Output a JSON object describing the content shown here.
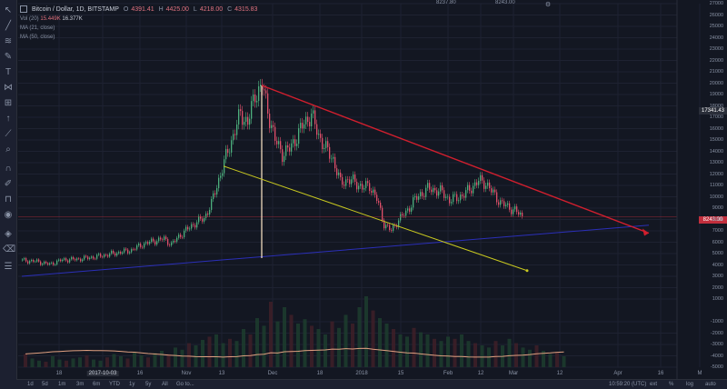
{
  "header": {
    "symbol": "Bitcoin / Dollar, 1D, BITSTAMP",
    "o_label": "O",
    "o_value": "4391.41",
    "h_label": "H",
    "h_value": "4425.00",
    "l_label": "L",
    "l_value": "4218.00",
    "c_label": "C",
    "c_value": "4315.83"
  },
  "sub_legends": {
    "vol": "Vol (20)",
    "vol_value_red": "15.449K",
    "vol_value": "16.377K",
    "ma1": "MA (21, close)",
    "ma2": "MA (50, close)"
  },
  "top_boxes": [
    "8237.80",
    "8243.00"
  ],
  "price_tags": {
    "crosshair": "17341.43",
    "last": "8243.00"
  },
  "bottom_bar": {
    "ranges": [
      "1d",
      "5d",
      "1m",
      "3m",
      "6m",
      "YTD",
      "1y",
      "5y",
      "All",
      "Go to..."
    ],
    "time": "10:59:20 (UTC)",
    "ext": "ext",
    "pct": "%",
    "log": "log",
    "auto": "auto"
  },
  "chart_data": {
    "type": "line",
    "symbol": "BTC/USD",
    "interval": "1D",
    "y_axis_ticks": [
      27000,
      26000,
      25000,
      24000,
      23000,
      22000,
      21000,
      20000,
      19000,
      18000,
      17000,
      16000,
      15000,
      14000,
      13000,
      12000,
      11000,
      10000,
      9000,
      8000,
      7000,
      6000,
      5000,
      4000,
      3000,
      2000,
      1000,
      -1000,
      -2000,
      -3000,
      -4000,
      -5000
    ],
    "x_axis_labels": [
      "18",
      "2017-10-03",
      "16",
      "Nov",
      "13",
      "Dec",
      "18",
      "2018",
      "15",
      "Feb",
      "12",
      "Mar",
      "12",
      "Apr",
      "16",
      "M"
    ],
    "x_axis_highlight": "2017-10-03",
    "ylim": [
      -5000,
      27000
    ],
    "price_path": [
      [
        0,
        4400
      ],
      [
        8,
        4300
      ],
      [
        15,
        4050
      ],
      [
        22,
        4450
      ],
      [
        30,
        4500
      ],
      [
        40,
        4700
      ],
      [
        50,
        5000
      ],
      [
        60,
        5300
      ],
      [
        66,
        5800
      ],
      [
        72,
        6100
      ],
      [
        78,
        6300
      ],
      [
        82,
        5800
      ],
      [
        86,
        6500
      ],
      [
        92,
        7300
      ],
      [
        96,
        7800
      ],
      [
        100,
        8100
      ],
      [
        104,
        9400
      ],
      [
        108,
        11500
      ],
      [
        112,
        13500
      ],
      [
        116,
        15400
      ],
      [
        120,
        17300
      ],
      [
        124,
        16500
      ],
      [
        128,
        19000
      ],
      [
        132,
        19800
      ],
      [
        135,
        17600
      ],
      [
        139,
        15000
      ],
      [
        143,
        13800
      ],
      [
        147,
        14200
      ],
      [
        151,
        15300
      ],
      [
        155,
        16500
      ],
      [
        159,
        17200
      ],
      [
        163,
        15400
      ],
      [
        167,
        14200
      ],
      [
        171,
        13300
      ],
      [
        175,
        11200
      ],
      [
        179,
        11500
      ],
      [
        183,
        11300
      ],
      [
        187,
        10800
      ],
      [
        191,
        11000
      ],
      [
        195,
        9800
      ],
      [
        199,
        7600
      ],
      [
        203,
        7000
      ],
      [
        207,
        8000
      ],
      [
        211,
        8600
      ],
      [
        215,
        9600
      ],
      [
        219,
        10200
      ],
      [
        223,
        10700
      ],
      [
        227,
        10600
      ],
      [
        231,
        10400
      ],
      [
        235,
        9700
      ],
      [
        239,
        9900
      ],
      [
        243,
        10200
      ],
      [
        247,
        10800
      ],
      [
        251,
        11400
      ],
      [
        255,
        11200
      ],
      [
        259,
        10300
      ],
      [
        263,
        9500
      ],
      [
        267,
        9100
      ],
      [
        271,
        8800
      ],
      [
        275,
        8243
      ]
    ],
    "annotations": {
      "red_trend": {
        "x": [
          132,
          345
        ],
        "y": [
          19800,
          6800
        ]
      },
      "yellow_trend": {
        "x": [
          111,
          278
        ],
        "y": [
          12700,
          3500
        ]
      },
      "blue_support": {
        "x": [
          0,
          345
        ],
        "y": [
          3000,
          7500
        ]
      },
      "white_vertical_x": 132,
      "last_price_line": 8243
    },
    "volume_hist": [
      12,
      8,
      6,
      5,
      10,
      7,
      6,
      8,
      9,
      11,
      7,
      6,
      9,
      12,
      10,
      8,
      14,
      11,
      9,
      13,
      15,
      12,
      18,
      16,
      22,
      20,
      25,
      28,
      30,
      22,
      26,
      24,
      35,
      30,
      45,
      38,
      60,
      42,
      55,
      48,
      40,
      44,
      38,
      35,
      30,
      42,
      36,
      48,
      40,
      55,
      65,
      52,
      45,
      40,
      35,
      30,
      28,
      36,
      32,
      30,
      26,
      24,
      28,
      26,
      30,
      24,
      22,
      20,
      18,
      24,
      20,
      26,
      22,
      18,
      16,
      20,
      15,
      12,
      14,
      10
    ],
    "volume_ma_baseline": 0.5
  }
}
